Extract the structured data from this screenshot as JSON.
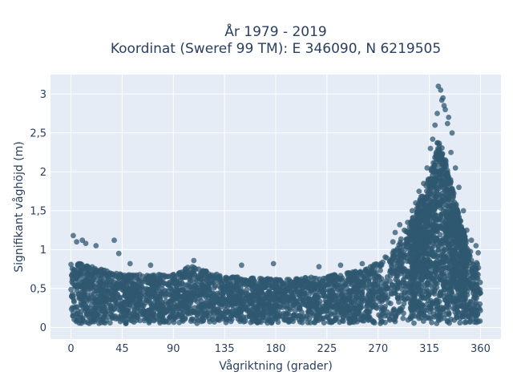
{
  "chart_data": {
    "type": "scatter",
    "title_line1": "År 1979 - 2019",
    "title_line2": "Koordinat (Sweref 99 TM): E 346090, N 6219505",
    "xlabel": "Vågriktning (grader)",
    "ylabel": "Signifikant våghöjd (m)",
    "xlim": [
      -18,
      378
    ],
    "ylim": [
      -0.15,
      3.25
    ],
    "x_ticks": [
      0,
      45,
      90,
      135,
      180,
      225,
      270,
      315,
      360
    ],
    "y_ticks": [
      0,
      0.5,
      1,
      1.5,
      2,
      2.5,
      3
    ],
    "y_tick_labels": [
      "0",
      "0,5",
      "1",
      "1,5",
      "2",
      "2,5",
      "3"
    ],
    "grid": true,
    "colors": {
      "marker": "#2f5870",
      "plot_bg": "#e5ecf6",
      "grid": "#ffffff"
    },
    "envelope": [
      [
        0,
        0.05,
        0.85
      ],
      [
        45,
        0.05,
        0.68
      ],
      [
        90,
        0.05,
        0.68
      ],
      [
        105,
        0.05,
        0.8
      ],
      [
        135,
        0.05,
        0.66
      ],
      [
        180,
        0.05,
        0.62
      ],
      [
        225,
        0.05,
        0.66
      ],
      [
        260,
        0.05,
        0.75
      ],
      [
        270,
        0.05,
        0.85
      ],
      [
        285,
        0.05,
        1.0
      ],
      [
        300,
        0.05,
        1.4
      ],
      [
        315,
        0.05,
        1.95
      ],
      [
        323,
        0.05,
        2.45
      ],
      [
        330,
        0.05,
        2.15
      ],
      [
        340,
        0.05,
        1.5
      ],
      [
        350,
        0.05,
        1.0
      ],
      [
        360,
        0.05,
        0.8
      ]
    ],
    "outliers": [
      {
        "x": 2,
        "y": 1.18
      },
      {
        "x": 5,
        "y": 1.1
      },
      {
        "x": 10,
        "y": 1.12
      },
      {
        "x": 13,
        "y": 1.08
      },
      {
        "x": 22,
        "y": 1.05
      },
      {
        "x": 38,
        "y": 1.12
      },
      {
        "x": 42,
        "y": 0.95
      },
      {
        "x": 52,
        "y": 0.82
      },
      {
        "x": 70,
        "y": 0.8
      },
      {
        "x": 108,
        "y": 0.86
      },
      {
        "x": 150,
        "y": 0.8
      },
      {
        "x": 178,
        "y": 0.82
      },
      {
        "x": 218,
        "y": 0.78
      },
      {
        "x": 237,
        "y": 0.8
      },
      {
        "x": 256,
        "y": 0.82
      },
      {
        "x": 283,
        "y": 1.1
      },
      {
        "x": 285,
        "y": 1.22
      },
      {
        "x": 289,
        "y": 1.32
      },
      {
        "x": 293,
        "y": 1.25
      },
      {
        "x": 296,
        "y": 1.35
      },
      {
        "x": 300,
        "y": 1.5
      },
      {
        "x": 303,
        "y": 1.6
      },
      {
        "x": 306,
        "y": 1.75
      },
      {
        "x": 310,
        "y": 1.85
      },
      {
        "x": 313,
        "y": 2.05
      },
      {
        "x": 316,
        "y": 2.3
      },
      {
        "x": 318,
        "y": 2.42
      },
      {
        "x": 320,
        "y": 2.6
      },
      {
        "x": 322,
        "y": 2.75
      },
      {
        "x": 323,
        "y": 3.1
      },
      {
        "x": 325,
        "y": 3.05
      },
      {
        "x": 326,
        "y": 2.92
      },
      {
        "x": 327,
        "y": 2.95
      },
      {
        "x": 328,
        "y": 2.85
      },
      {
        "x": 329,
        "y": 2.8
      },
      {
        "x": 332,
        "y": 2.7
      },
      {
        "x": 331,
        "y": 2.62
      },
      {
        "x": 335,
        "y": 2.5
      },
      {
        "x": 334,
        "y": 2.25
      },
      {
        "x": 338,
        "y": 2.05
      },
      {
        "x": 341,
        "y": 1.8
      },
      {
        "x": 345,
        "y": 1.5
      },
      {
        "x": 348,
        "y": 1.25
      },
      {
        "x": 352,
        "y": 1.12
      },
      {
        "x": 356,
        "y": 1.05
      },
      {
        "x": 358,
        "y": 0.96
      }
    ]
  }
}
